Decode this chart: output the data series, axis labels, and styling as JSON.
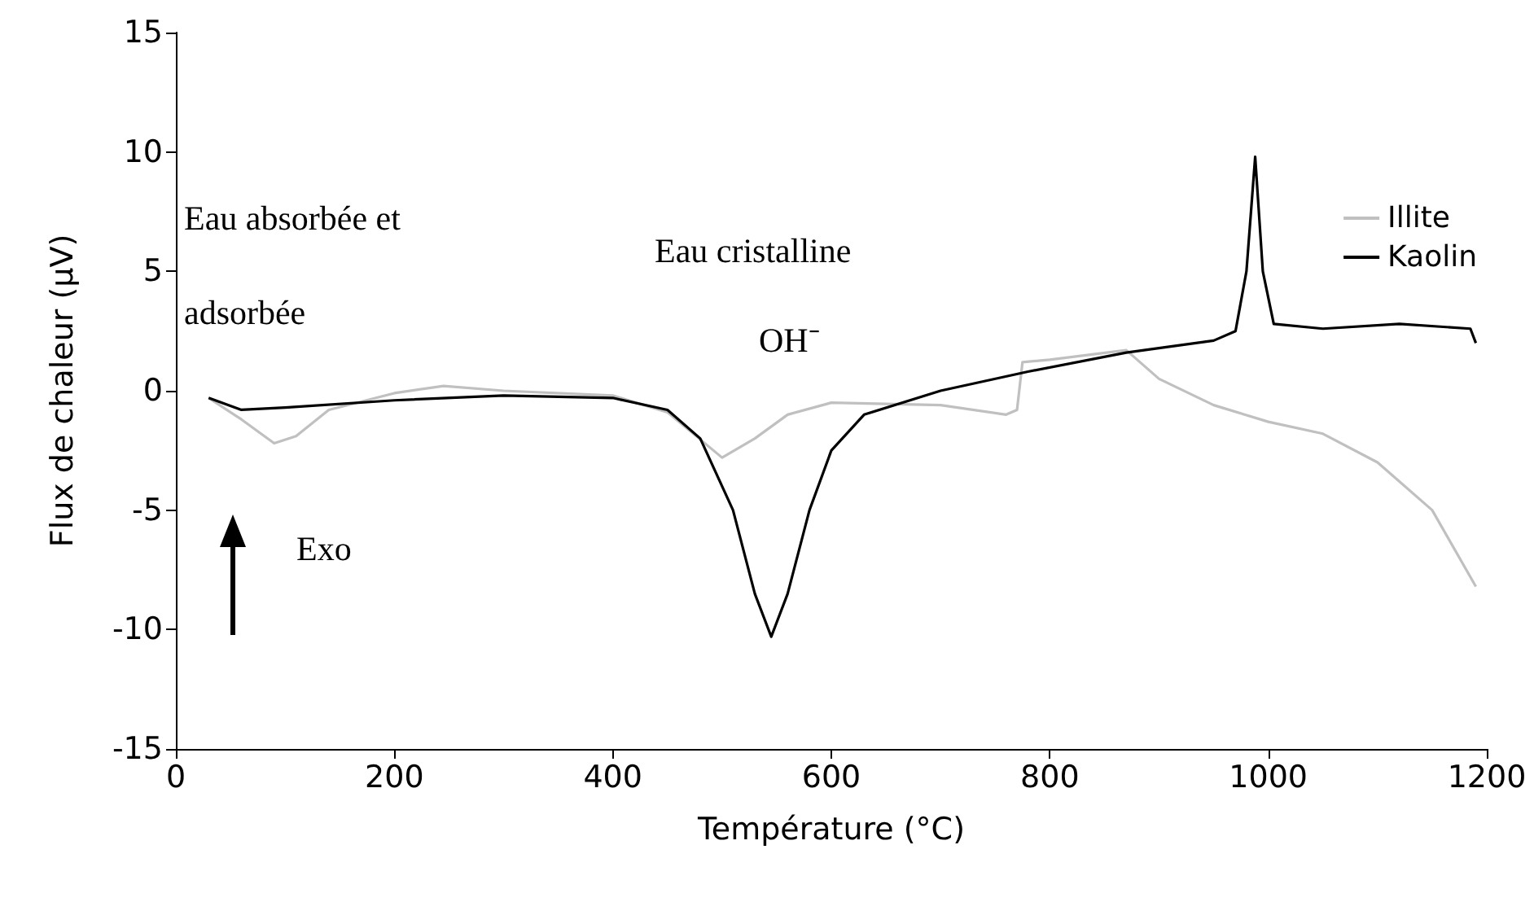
{
  "chart_data": {
    "type": "line",
    "xlabel": "Température (°C)",
    "ylabel": "Flux de chaleur (µV)",
    "xlim": [
      0,
      1200
    ],
    "xticks": [
      0,
      200,
      400,
      600,
      800,
      1000,
      1200
    ],
    "ylim": [
      -15,
      15
    ],
    "yticks": [
      -15,
      -10,
      -5,
      0,
      5,
      10,
      15
    ],
    "grid": false,
    "legend": "top right",
    "marker": "none",
    "line_style": "solid",
    "annotations": [
      "Eau absorbée et adsorbée",
      "Eau cristalline",
      "OH⁻",
      "Exo"
    ],
    "series": [
      {
        "name": "Illite",
        "color": "#c0c0c0",
        "x": [
          30,
          60,
          90,
          110,
          140,
          200,
          245,
          300,
          400,
          450,
          500,
          530,
          560,
          600,
          700,
          760,
          770,
          775,
          800,
          870,
          900,
          950,
          1000,
          1050,
          1100,
          1150,
          1190
        ],
        "values": [
          -0.3,
          -1.2,
          -2.2,
          -1.9,
          -0.8,
          -0.1,
          0.2,
          0,
          -0.2,
          -0.9,
          -2.8,
          -2.0,
          -1.0,
          -0.5,
          -0.6,
          -1.0,
          -0.8,
          1.2,
          1.3,
          1.7,
          0.5,
          -0.6,
          -1.3,
          -1.8,
          -3,
          -5,
          -8.2
        ]
      },
      {
        "name": "Kaolin",
        "color": "#000000",
        "x": [
          30,
          60,
          100,
          200,
          300,
          400,
          450,
          480,
          510,
          530,
          545,
          560,
          580,
          600,
          630,
          700,
          780,
          870,
          950,
          970,
          980,
          988,
          995,
          1005,
          1050,
          1120,
          1185,
          1190
        ],
        "values": [
          -0.3,
          -0.8,
          -0.7,
          -0.4,
          -0.2,
          -0.3,
          -0.8,
          -2,
          -5,
          -8.5,
          -10.3,
          -8.5,
          -5,
          -2.5,
          -1,
          0,
          0.8,
          1.6,
          2.1,
          2.5,
          5,
          9.8,
          5,
          2.8,
          2.6,
          2.8,
          2.6,
          2.0
        ]
      }
    ]
  }
}
